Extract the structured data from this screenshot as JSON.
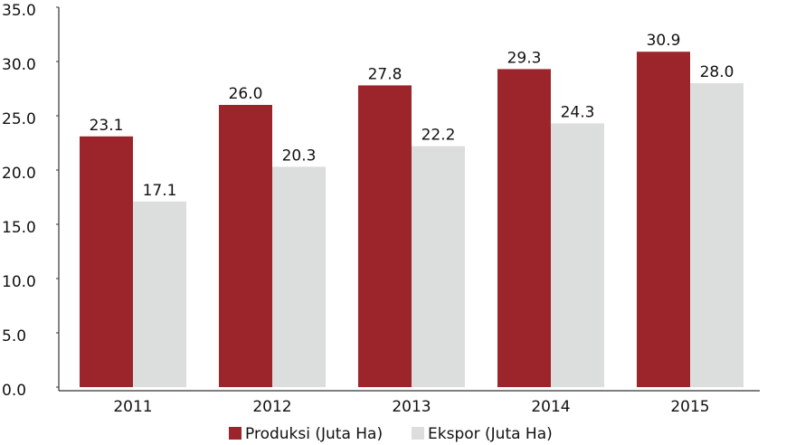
{
  "chart_data": {
    "type": "bar",
    "categories": [
      "2011",
      "2012",
      "2013",
      "2014",
      "2015"
    ],
    "series": [
      {
        "name": "Produksi (Juta Ha)",
        "color": "#9b252b",
        "values": [
          23.1,
          26.0,
          27.8,
          29.3,
          30.9
        ],
        "value_labels": [
          "23.1",
          "26.0",
          "27.8",
          "29.3",
          "30.9"
        ]
      },
      {
        "name": "Ekspor (Juta Ha)",
        "color": "#dcdddd",
        "values": [
          17.1,
          20.3,
          22.2,
          24.3,
          28.0
        ],
        "value_labels": [
          "17.1",
          "20.3",
          "22.2",
          "24.3",
          "28.0"
        ]
      }
    ],
    "ylim": [
      0,
      35
    ],
    "yticks": [
      {
        "value": 0,
        "label": "0.0"
      },
      {
        "value": 5,
        "label": "5.0"
      },
      {
        "value": 10,
        "label": "10.0"
      },
      {
        "value": 15,
        "label": "15.0"
      },
      {
        "value": 20,
        "label": "20.0"
      },
      {
        "value": 25,
        "label": "25.0"
      },
      {
        "value": 30,
        "label": "30.0"
      },
      {
        "value": 35,
        "label": "35.0"
      }
    ],
    "legend": "bottom"
  }
}
